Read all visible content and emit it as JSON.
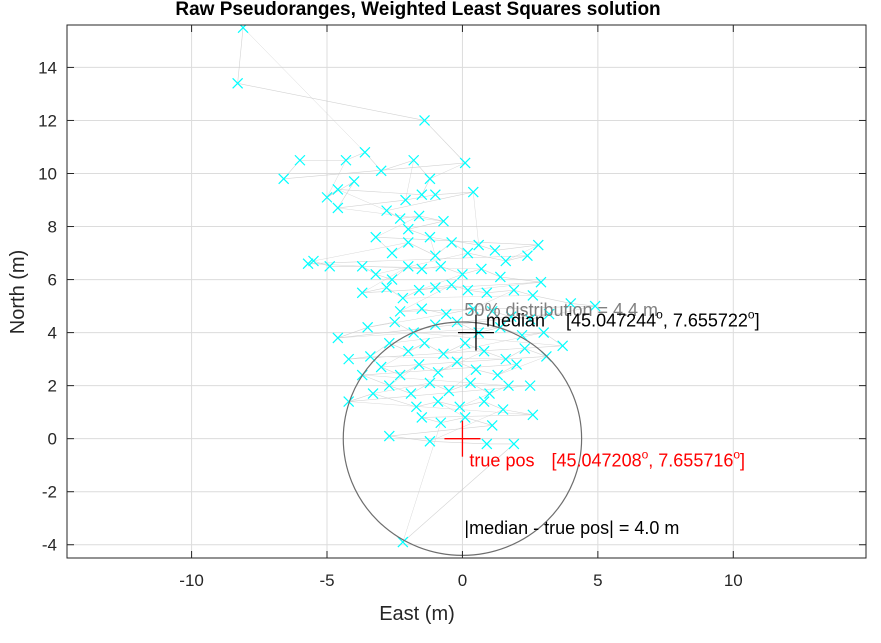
{
  "chart_data": {
    "type": "scatter",
    "title": "Raw Pseudoranges, Weighted Least Squares solution",
    "xlabel": "East (m)",
    "ylabel": "North (m)",
    "xlim": [
      -14.6,
      14.9
    ],
    "ylim": [
      -4.5,
      15.6
    ],
    "xticks": [
      -10,
      -5,
      0,
      5,
      10
    ],
    "yticks": [
      -4,
      -2,
      0,
      2,
      4,
      6,
      8,
      10,
      12,
      14
    ],
    "grid": true,
    "colors": {
      "points": "#00ffff",
      "track": "#c8c8c8",
      "truth": "#ff0000",
      "median": "#000000",
      "circle": "#6e6e6e",
      "circle_label": "#808080"
    },
    "points": [
      [
        -8.1,
        15.5
      ],
      [
        -8.3,
        13.4
      ],
      [
        -1.4,
        12.0
      ],
      [
        0.1,
        10.4
      ],
      [
        -6.6,
        9.8
      ],
      [
        -6.0,
        10.5
      ],
      [
        -4.3,
        10.5
      ],
      [
        -3.6,
        10.8
      ],
      [
        -3.0,
        10.1
      ],
      [
        -1.8,
        10.5
      ],
      [
        -1.2,
        9.8
      ],
      [
        -1.5,
        9.2
      ],
      [
        -4.6,
        9.4
      ],
      [
        -5.0,
        9.1
      ],
      [
        -4.0,
        9.7
      ],
      [
        -4.6,
        8.7
      ],
      [
        -2.1,
        9.0
      ],
      [
        -1.0,
        9.2
      ],
      [
        0.4,
        9.3
      ],
      [
        -2.8,
        8.6
      ],
      [
        -2.3,
        8.3
      ],
      [
        -1.6,
        8.4
      ],
      [
        -0.7,
        8.2
      ],
      [
        -2.0,
        7.9
      ],
      [
        -1.2,
        7.6
      ],
      [
        0.6,
        7.3
      ],
      [
        1.2,
        7.1
      ],
      [
        2.8,
        7.3
      ],
      [
        -3.2,
        7.6
      ],
      [
        -2.6,
        7.0
      ],
      [
        -2.0,
        7.4
      ],
      [
        -1.0,
        6.9
      ],
      [
        -0.4,
        7.4
      ],
      [
        0.2,
        7.0
      ],
      [
        1.6,
        6.7
      ],
      [
        2.4,
        6.9
      ],
      [
        -5.7,
        6.6
      ],
      [
        -5.5,
        6.7
      ],
      [
        -4.9,
        6.5
      ],
      [
        -3.7,
        6.5
      ],
      [
        -3.2,
        6.2
      ],
      [
        -2.6,
        6.0
      ],
      [
        -2.0,
        6.5
      ],
      [
        -1.5,
        6.4
      ],
      [
        -0.8,
        6.5
      ],
      [
        0.0,
        6.2
      ],
      [
        0.7,
        6.4
      ],
      [
        1.4,
        6.1
      ],
      [
        2.9,
        5.9
      ],
      [
        -3.7,
        5.5
      ],
      [
        -2.8,
        5.7
      ],
      [
        -2.2,
        5.3
      ],
      [
        -1.6,
        5.6
      ],
      [
        -1.0,
        5.7
      ],
      [
        -0.4,
        5.8
      ],
      [
        0.2,
        5.6
      ],
      [
        0.9,
        5.5
      ],
      [
        1.9,
        5.6
      ],
      [
        2.6,
        5.4
      ],
      [
        4.0,
        5.1
      ],
      [
        4.9,
        5.0
      ],
      [
        -2.3,
        4.8
      ],
      [
        -1.5,
        4.9
      ],
      [
        -0.6,
        4.7
      ],
      [
        0.4,
        4.9
      ],
      [
        1.1,
        4.8
      ],
      [
        1.8,
        4.6
      ],
      [
        2.5,
        4.5
      ],
      [
        3.2,
        4.7
      ],
      [
        -4.6,
        3.8
      ],
      [
        -3.5,
        4.2
      ],
      [
        -2.5,
        4.4
      ],
      [
        -1.8,
        4.0
      ],
      [
        -1.0,
        4.3
      ],
      [
        -0.2,
        4.4
      ],
      [
        0.6,
        4.0
      ],
      [
        1.4,
        4.2
      ],
      [
        2.2,
        3.9
      ],
      [
        3.0,
        4.0
      ],
      [
        3.7,
        3.5
      ],
      [
        -4.2,
        3.0
      ],
      [
        -3.4,
        3.1
      ],
      [
        -2.7,
        3.6
      ],
      [
        -2.0,
        3.3
      ],
      [
        -1.4,
        3.6
      ],
      [
        -0.7,
        3.2
      ],
      [
        0.1,
        3.6
      ],
      [
        0.8,
        3.3
      ],
      [
        1.6,
        3.0
      ],
      [
        2.3,
        3.4
      ],
      [
        3.1,
        3.1
      ],
      [
        -3.0,
        2.7
      ],
      [
        -2.3,
        2.4
      ],
      [
        -1.6,
        2.8
      ],
      [
        -0.9,
        2.5
      ],
      [
        -0.2,
        2.9
      ],
      [
        0.5,
        2.6
      ],
      [
        1.3,
        2.4
      ],
      [
        2.0,
        2.8
      ],
      [
        -3.7,
        2.4
      ],
      [
        -2.7,
        2.0
      ],
      [
        -1.9,
        1.7
      ],
      [
        -1.2,
        2.1
      ],
      [
        -0.5,
        1.8
      ],
      [
        0.3,
        2.1
      ],
      [
        1.0,
        1.7
      ],
      [
        1.7,
        2.0
      ],
      [
        2.5,
        2.0
      ],
      [
        -4.2,
        1.4
      ],
      [
        -3.3,
        1.7
      ],
      [
        -1.7,
        1.2
      ],
      [
        -0.9,
        1.4
      ],
      [
        -0.1,
        1.2
      ],
      [
        0.8,
        1.4
      ],
      [
        1.5,
        1.1
      ],
      [
        2.6,
        0.9
      ],
      [
        -1.5,
        0.8
      ],
      [
        -0.8,
        0.6
      ],
      [
        0.1,
        0.8
      ],
      [
        1.1,
        0.5
      ],
      [
        -2.7,
        0.1
      ],
      [
        -1.2,
        -0.1
      ],
      [
        0.9,
        -0.2
      ],
      [
        1.9,
        -0.2
      ],
      [
        -2.2,
        -3.9
      ]
    ],
    "track_order_note": "",
    "truth": {
      "x": 0,
      "y": 0,
      "label": "true pos",
      "coords": [
        "45.047208",
        "o",
        ", 7.655716",
        "o",
        "]"
      ],
      "coords_open": "["
    },
    "median": {
      "x": 0.5,
      "y": 4.0,
      "label": "median",
      "coords_open": "[",
      "lat": "45.047244",
      "lon": ", 7.655722",
      "deg": "o",
      "close": "]"
    },
    "circle": {
      "cx": 0,
      "cy": 0,
      "r": 4.4,
      "label": "50% distribution = 4.4 m"
    },
    "annotations": {
      "distance": "|median - true pos| = 4.0 m"
    }
  }
}
